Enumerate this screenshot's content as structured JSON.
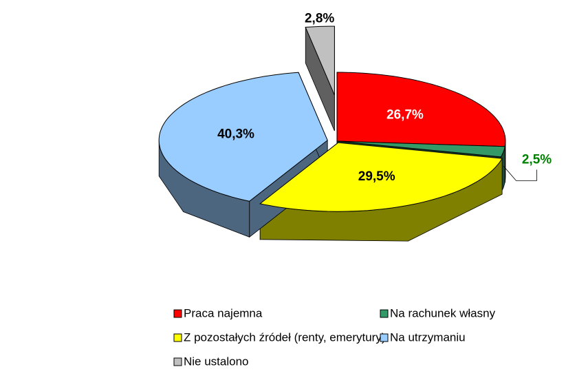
{
  "chart_data": {
    "type": "pie3d",
    "categories": [
      "Praca najemna",
      "Na rachunek własny",
      "Z pozostałych źródeł (renty, emerytury)",
      "Na utrzymaniu",
      "Nie ustalono"
    ],
    "values": [
      26.7,
      2.5,
      29.5,
      40.3,
      2.8
    ],
    "value_labels": [
      "26,7%",
      "2,5%",
      "29,5%",
      "40,3%",
      "2,8%"
    ],
    "colors": [
      "#ff0000",
      "#339966",
      "#ffff00",
      "#99ccff",
      "#c0c0c0"
    ],
    "label_colors": [
      "#ffffff",
      "#008000",
      "#000000",
      "#000000",
      "#000000"
    ],
    "legend": "bottom"
  }
}
